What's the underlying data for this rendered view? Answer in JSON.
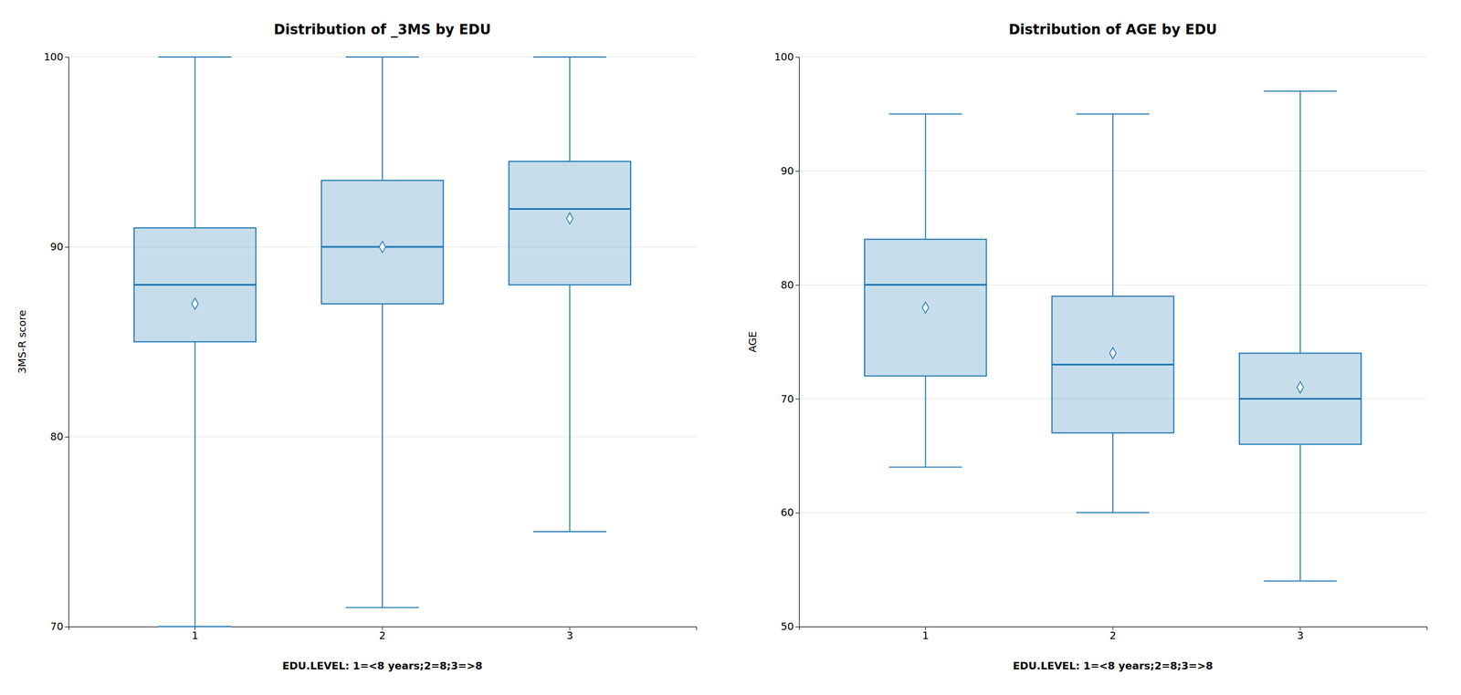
{
  "chart_data": [
    {
      "type": "box",
      "title": "Distribution of _3MS by EDU",
      "ylabel": "3MS-R score",
      "xlabel": "EDU.LEVEL: 1=<8 years;2=8;3=>8",
      "categories": [
        "1",
        "2",
        "3"
      ],
      "boxes": [
        {
          "q1": 85.0,
          "median": 88.0,
          "q3": 91.0,
          "whislo": 70.0,
          "whishi": 100.0,
          "mean": 87.0
        },
        {
          "q1": 87.0,
          "median": 90.0,
          "q3": 93.5,
          "whislo": 71.0,
          "whishi": 100.0,
          "mean": 90.0
        },
        {
          "q1": 88.0,
          "median": 92.0,
          "q3": 94.5,
          "whislo": 75.0,
          "whishi": 100.0,
          "mean": 91.5
        }
      ],
      "ylim": [
        70,
        100
      ],
      "yticks": [
        70,
        80,
        90,
        100
      ],
      "grid": true
    },
    {
      "type": "box",
      "title": "Distribution of AGE by EDU",
      "ylabel": "AGE",
      "xlabel": "EDU.LEVEL: 1=<8 years;2=8;3=>8",
      "categories": [
        "1",
        "2",
        "3"
      ],
      "boxes": [
        {
          "q1": 72.0,
          "median": 80.0,
          "q3": 84.0,
          "whislo": 64.0,
          "whishi": 95.0,
          "mean": 78.0
        },
        {
          "q1": 67.0,
          "median": 73.0,
          "q3": 79.0,
          "whislo": 60.0,
          "whishi": 95.0,
          "mean": 74.0
        },
        {
          "q1": 66.0,
          "median": 70.0,
          "q3": 74.0,
          "whislo": 54.0,
          "whishi": 97.0,
          "mean": 71.0
        }
      ],
      "ylim": [
        50,
        100
      ],
      "yticks": [
        50,
        60,
        70,
        80,
        90,
        100
      ],
      "grid": true
    }
  ]
}
